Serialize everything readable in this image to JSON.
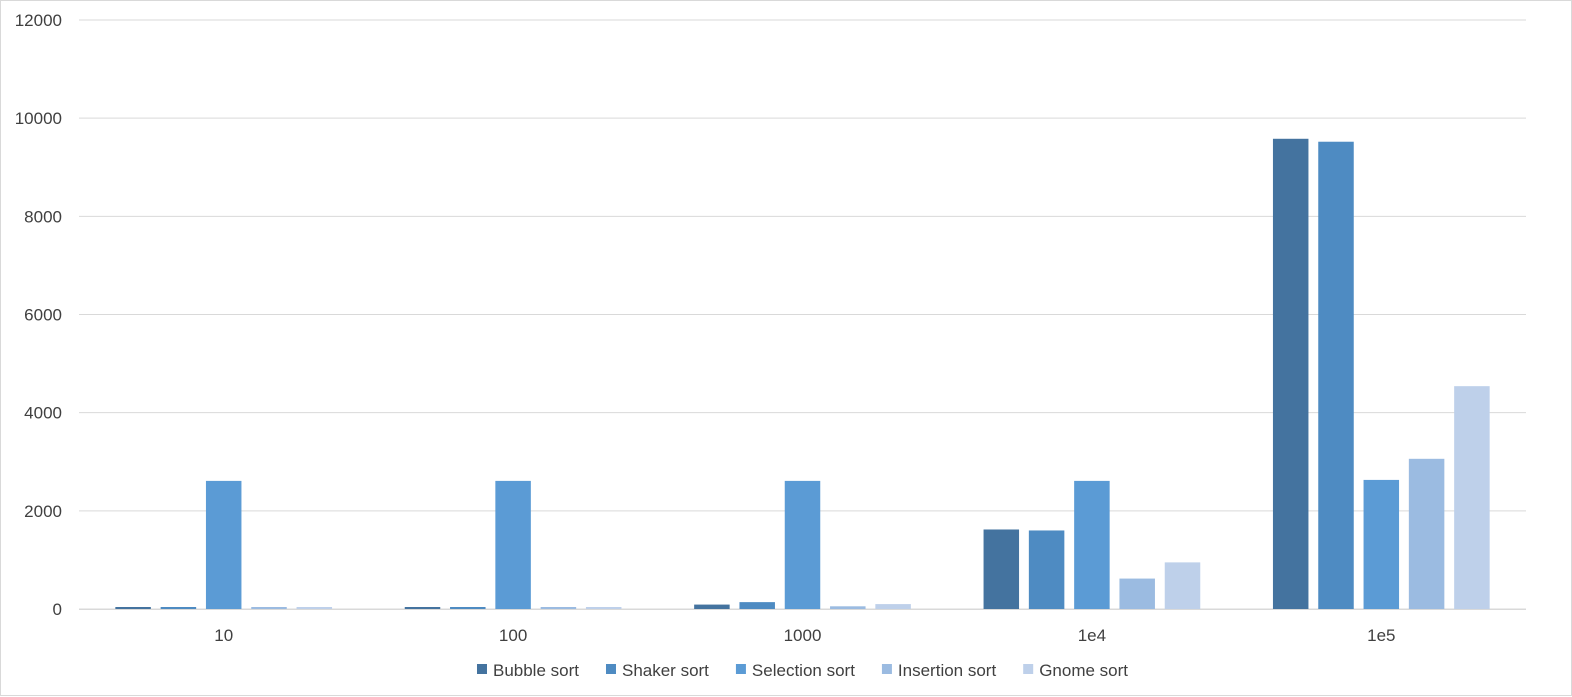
{
  "chart_data": {
    "type": "bar",
    "title": "",
    "xlabel": "",
    "ylabel": "",
    "categories": [
      "10",
      "100",
      "1000",
      "1e4",
      "1e5"
    ],
    "ylim": [
      0,
      12000
    ],
    "yticks": [
      0,
      2000,
      4000,
      6000,
      8000,
      10000,
      12000
    ],
    "grid": true,
    "legend_position": "bottom",
    "series": [
      {
        "name": "Bubble sort",
        "color": "#44739f",
        "values": [
          1,
          1,
          90,
          1620,
          9580
        ]
      },
      {
        "name": "Shaker sort",
        "color": "#4e8bc2",
        "values": [
          1,
          1,
          140,
          1600,
          9520
        ]
      },
      {
        "name": "Selection sort",
        "color": "#5b9bd5",
        "values": [
          2610,
          2610,
          2610,
          2610,
          2630
        ]
      },
      {
        "name": "Insertion sort",
        "color": "#9bbbe1",
        "values": [
          1,
          1,
          55,
          620,
          3060
        ]
      },
      {
        "name": "Gnome sort",
        "color": "#bed0ea",
        "values": [
          1,
          1,
          100,
          950,
          4540
        ]
      }
    ]
  }
}
